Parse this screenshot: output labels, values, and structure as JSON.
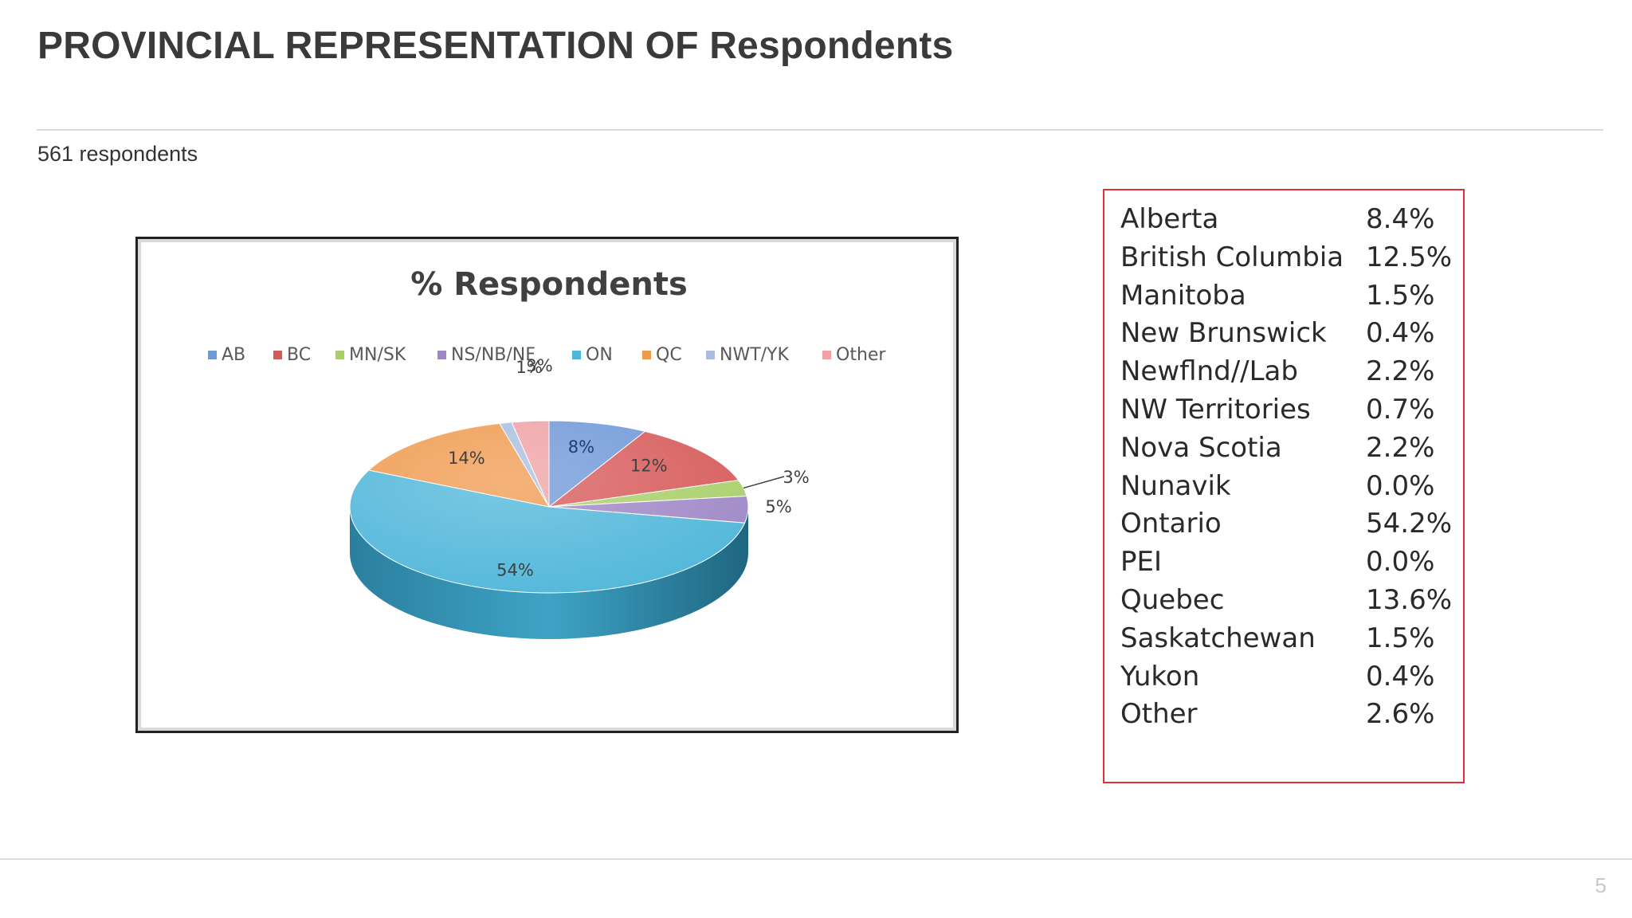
{
  "slide": {
    "title": "PROVINCIAL REPRESENTATION OF Respondents",
    "subtitle": "561 respondents",
    "page_number": "5"
  },
  "chart_data": {
    "type": "pie",
    "title": "% Respondents",
    "legend_placement": "top",
    "categories": [
      "AB",
      "BC",
      "MN/SK",
      "NS/NB/NF",
      "ON",
      "QC",
      "NWT/YK",
      "Other"
    ],
    "values": [
      8,
      12,
      3,
      5,
      54,
      14,
      1,
      3
    ],
    "labels": [
      "8%",
      "12%",
      "3%",
      "5%",
      "54%",
      "14%",
      "1%",
      "3%"
    ],
    "colors": [
      "#6f98d8",
      "#d75a5a",
      "#a9cf6a",
      "#9f87c6",
      "#4fb6d9",
      "#f09a4f",
      "#a9bedf",
      "#efa1a5"
    ],
    "style": "3d"
  },
  "table": {
    "rows": [
      {
        "province": "Alberta",
        "percent": "8.4%"
      },
      {
        "province": "British Columbia",
        "percent": "12.5%"
      },
      {
        "province": "Manitoba",
        "percent": "1.5%"
      },
      {
        "province": "New Brunswick",
        "percent": "0.4%"
      },
      {
        "province": "Newflnd//Lab",
        "percent": "2.2%"
      },
      {
        "province": "NW Territories",
        "percent": "0.7%"
      },
      {
        "province": "Nova Scotia",
        "percent": "2.2%"
      },
      {
        "province": "Nunavik",
        "percent": "0.0%"
      },
      {
        "province": "Ontario",
        "percent": "54.2%"
      },
      {
        "province": "PEI",
        "percent": "0.0%"
      },
      {
        "province": "Quebec",
        "percent": "13.6%"
      },
      {
        "province": "Saskatchewan",
        "percent": "1.5%"
      },
      {
        "province": "Yukon",
        "percent": "0.4%"
      },
      {
        "province": "Other",
        "percent": "2.6%"
      }
    ]
  }
}
